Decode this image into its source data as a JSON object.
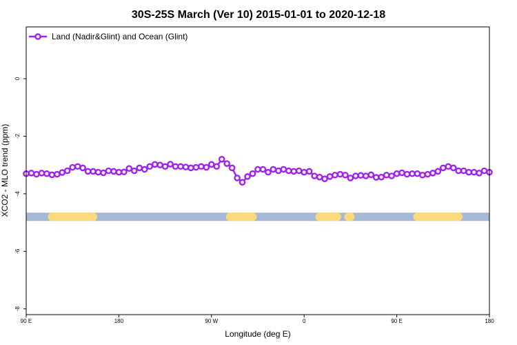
{
  "chart_data": {
    "type": "line",
    "title": "30S-25S March (Ver 10)   2015-01-01 to 2020-12-18",
    "xlabel": "Longitude (deg E)",
    "ylabel": "XCO2 - MLO trend (ppm)",
    "x_ticks": [
      {
        "value": 90,
        "label": "90 E"
      },
      {
        "value": 180,
        "label": "180"
      },
      {
        "value": 270,
        "label": "90 W"
      },
      {
        "value": 360,
        "label": "0"
      },
      {
        "value": 450,
        "label": "90 E"
      },
      {
        "value": 540,
        "label": "180"
      }
    ],
    "y_ticks": [
      {
        "value": 0,
        "label": "0"
      },
      {
        "value": -2,
        "label": "-2"
      },
      {
        "value": -4,
        "label": "-4"
      },
      {
        "value": -6,
        "label": "-6"
      },
      {
        "value": -8,
        "label": "-8"
      }
    ],
    "xlim": [
      90,
      540
    ],
    "ylim": [
      -8.2,
      1.8
    ],
    "grid": false,
    "legend_position": "top-left",
    "series": [
      {
        "name": "Land (Nadir&Glint) and Ocean (Glint)",
        "color": "#a020f0",
        "x": [
          90,
          95,
          100,
          105,
          110,
          115,
          120,
          125,
          130,
          135,
          140,
          145,
          150,
          155,
          160,
          165,
          170,
          175,
          180,
          185,
          190,
          195,
          200,
          205,
          210,
          215,
          220,
          225,
          230,
          235,
          240,
          245,
          250,
          255,
          260,
          265,
          270,
          275,
          280,
          285,
          290,
          295,
          300,
          305,
          310,
          315,
          320,
          325,
          330,
          335,
          340,
          345,
          350,
          355,
          360,
          365,
          370,
          375,
          380,
          385,
          390,
          395,
          400,
          405,
          410,
          415,
          420,
          425,
          430,
          435,
          440,
          445,
          450,
          455,
          460,
          465,
          470,
          475,
          480,
          485,
          490,
          495,
          500,
          505,
          510,
          515,
          520,
          525,
          530,
          535,
          540
        ],
        "values": [
          -3.3,
          -3.28,
          -3.32,
          -3.28,
          -3.3,
          -3.34,
          -3.32,
          -3.26,
          -3.2,
          -3.08,
          -3.05,
          -3.1,
          -3.22,
          -3.22,
          -3.25,
          -3.27,
          -3.2,
          -3.22,
          -3.25,
          -3.24,
          -3.12,
          -3.2,
          -3.1,
          -3.15,
          -3.05,
          -2.98,
          -3.0,
          -3.05,
          -2.97,
          -3.05,
          -3.05,
          -3.07,
          -3.1,
          -3.08,
          -3.05,
          -3.08,
          -2.98,
          -3.05,
          -2.8,
          -2.95,
          -3.1,
          -3.45,
          -3.6,
          -3.4,
          -3.3,
          -3.15,
          -3.15,
          -3.25,
          -3.15,
          -3.2,
          -3.15,
          -3.2,
          -3.22,
          -3.2,
          -3.25,
          -3.22,
          -3.38,
          -3.42,
          -3.48,
          -3.4,
          -3.35,
          -3.32,
          -3.35,
          -3.45,
          -3.38,
          -3.36,
          -3.38,
          -3.34,
          -3.43,
          -3.42,
          -3.35,
          -3.38,
          -3.3,
          -3.27,
          -3.32,
          -3.3,
          -3.3,
          -3.35,
          -3.32,
          -3.28,
          -3.22,
          -3.1,
          -3.05,
          -3.1,
          -3.2,
          -3.2,
          -3.25,
          -3.25,
          -3.28,
          -3.2,
          -3.25
        ]
      }
    ],
    "surface_bar": {
      "y": -4.8,
      "ocean_color": "#a5b8d4",
      "land_color": "#fcd97a",
      "land_segments": [
        [
          115,
          155
        ],
        [
          288,
          310
        ],
        [
          375,
          392
        ],
        [
          403,
          405
        ],
        [
          470,
          510
        ]
      ]
    }
  }
}
